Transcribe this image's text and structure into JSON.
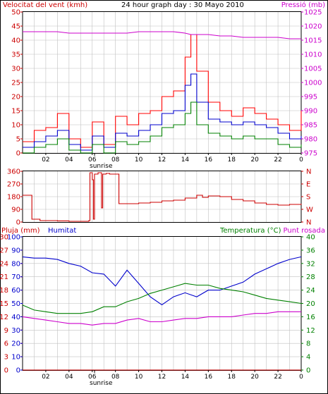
{
  "header": {
    "wind_label": "Velocitat del vent (kmh)",
    "title": "24 hour graph day : 30 Mayo 2010",
    "pressure_label": "Pressió (mb)"
  },
  "labels": {
    "rain": "Pluja (mm)",
    "humidity": "Humitat",
    "temperature": "Temperatura (°C)",
    "dewpoint": "Punt rosada",
    "sunrise": "sunrise"
  },
  "colors": {
    "wind_gust": "#ff0000",
    "wind_avg": "#0000cc",
    "wind_low": "#008000",
    "pressure": "#cc00cc",
    "direction": "#cc0000",
    "humidity": "#0000cc",
    "temperature": "#008000",
    "dewpoint": "#cc00cc",
    "rain": "#cc0000",
    "grid": "#c0c0c0"
  },
  "chart_data": [
    {
      "type": "line",
      "name": "wind-pressure",
      "x_ticks": [
        "02",
        "04",
        "06",
        "08",
        "10",
        "12",
        "14",
        "16",
        "18",
        "20",
        "22",
        "0"
      ],
      "y_left": {
        "label": "Velocitat del vent (kmh)",
        "ticks": [
          0,
          5,
          10,
          15,
          20,
          25,
          30,
          35,
          40,
          45,
          50
        ],
        "range": [
          0,
          50
        ]
      },
      "y_right": {
        "label": "Pressió (mb)",
        "ticks": [
          975,
          980,
          985,
          990,
          995,
          1000,
          1005,
          1010,
          1015,
          1020,
          1025
        ],
        "range": [
          975,
          1025
        ]
      },
      "x": [
        0,
        1,
        2,
        3,
        4,
        5,
        6,
        7,
        8,
        9,
        10,
        11,
        12,
        13,
        14,
        14.5,
        15,
        16,
        17,
        18,
        19,
        20,
        21,
        22,
        23,
        24
      ],
      "series": [
        {
          "key": "gust",
          "axis": "left",
          "values": [
            4,
            8,
            9,
            14,
            5,
            2,
            11,
            3,
            13,
            10,
            14,
            15,
            20,
            22,
            34,
            42,
            29,
            18,
            15,
            13,
            16,
            14,
            12,
            10,
            8,
            15
          ]
        },
        {
          "key": "avg",
          "axis": "left",
          "values": [
            2,
            4,
            6,
            8,
            3,
            1,
            6,
            2,
            7,
            6,
            8,
            10,
            14,
            15,
            24,
            28,
            18,
            12,
            11,
            10,
            11,
            10,
            9,
            7,
            5,
            6
          ]
        },
        {
          "key": "low",
          "axis": "left",
          "values": [
            0,
            2,
            3,
            5,
            1,
            0,
            3,
            0,
            4,
            3,
            4,
            6,
            9,
            10,
            14,
            18,
            10,
            7,
            6,
            5,
            6,
            5,
            5,
            3,
            2,
            3
          ]
        },
        {
          "key": "pressure",
          "axis": "right",
          "values": [
            1018,
            1018,
            1018,
            1018,
            1017.5,
            1017.5,
            1017.5,
            1017.5,
            1017.5,
            1017.5,
            1018,
            1018,
            1018,
            1018,
            1017.5,
            1017,
            1017,
            1017,
            1016.5,
            1016.5,
            1016,
            1016,
            1016,
            1016,
            1015.5,
            1015.5
          ]
        }
      ]
    },
    {
      "type": "line",
      "name": "wind-direction",
      "x_ticks": [],
      "y_left": {
        "ticks": [
          0,
          90,
          180,
          270,
          360
        ],
        "range": [
          0,
          360
        ]
      },
      "y_right": {
        "ticks": [
          "N",
          "W",
          "S",
          "E",
          "N"
        ]
      },
      "x": [
        0,
        0.5,
        0.8,
        1.5,
        3,
        4,
        5,
        5.7,
        5.8,
        6.0,
        6.1,
        6.2,
        6.5,
        6.8,
        6.9,
        7.2,
        7.5,
        8.0,
        8.3,
        9,
        10,
        11,
        12,
        13,
        14,
        15,
        15.5,
        16,
        17,
        18,
        19,
        20,
        21,
        22,
        23,
        24
      ],
      "series": [
        {
          "key": "direction",
          "values": [
            190,
            190,
            20,
            10,
            8,
            5,
            5,
            10,
            350,
            300,
            20,
            340,
            350,
            100,
            340,
            345,
            340,
            340,
            130,
            130,
            135,
            140,
            150,
            155,
            170,
            190,
            175,
            185,
            180,
            160,
            150,
            135,
            125,
            120,
            125,
            130
          ]
        }
      ]
    },
    {
      "type": "line",
      "name": "rain-humidity-temperature",
      "x_ticks": [
        "02",
        "04",
        "06",
        "08",
        "10",
        "12",
        "14",
        "16",
        "18",
        "20",
        "22",
        "0"
      ],
      "y_left_rain": {
        "label": "Pluja (mm)",
        "ticks": [
          0,
          3,
          6,
          9,
          12,
          15,
          18,
          21,
          24,
          27,
          30
        ],
        "range": [
          0,
          30
        ]
      },
      "y_left_humidity": {
        "label": "Humitat",
        "ticks": [
          0,
          10,
          20,
          30,
          40,
          50,
          60,
          70,
          80,
          90,
          100
        ],
        "range": [
          0,
          100
        ]
      },
      "y_right": {
        "label": "Temperatura (°C)",
        "ticks": [
          0,
          4,
          8,
          12,
          16,
          20,
          24,
          28,
          32,
          36,
          40
        ],
        "range": [
          0,
          40
        ]
      },
      "x": [
        0,
        1,
        2,
        3,
        4,
        5,
        6,
        7,
        8,
        9,
        10,
        11,
        12,
        13,
        14,
        15,
        16,
        17,
        18,
        19,
        20,
        21,
        22,
        23,
        24
      ],
      "series": [
        {
          "key": "humidity",
          "axis": "humidity",
          "values": [
            85,
            84,
            84,
            83,
            80,
            78,
            73,
            72,
            63,
            75,
            65,
            55,
            49,
            55,
            58,
            55,
            60,
            60,
            63,
            66,
            72,
            76,
            80,
            83,
            85
          ]
        },
        {
          "key": "temperature",
          "axis": "right",
          "values": [
            19.5,
            18,
            17.5,
            17,
            17,
            17,
            17.5,
            19,
            19,
            20.5,
            21.5,
            23,
            24,
            25,
            26,
            25.5,
            25.5,
            24.5,
            24,
            23.5,
            22.5,
            21.5,
            21,
            20.5,
            20
          ]
        },
        {
          "key": "dewpoint",
          "axis": "right",
          "values": [
            16,
            15.5,
            15,
            14.5,
            14,
            14,
            13.5,
            14,
            14,
            15,
            15.5,
            14.5,
            14.5,
            15,
            15.5,
            15.5,
            16,
            16,
            16,
            16.5,
            17,
            17,
            17.5,
            17.5,
            17.5
          ]
        },
        {
          "key": "rain",
          "axis": "rain",
          "values": [
            0,
            0,
            0,
            0,
            0,
            0,
            0,
            0,
            0,
            0,
            0,
            0,
            0,
            0,
            0,
            0,
            0,
            0,
            0,
            0,
            0,
            0,
            0,
            0,
            0
          ]
        }
      ]
    }
  ]
}
